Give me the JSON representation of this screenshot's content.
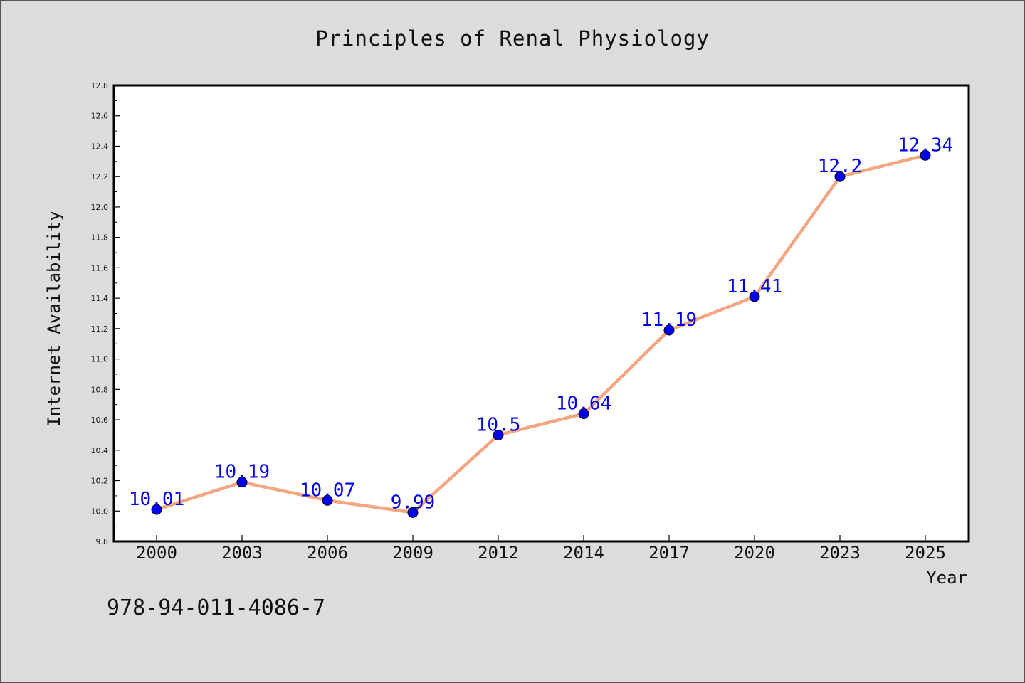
{
  "chart_data": {
    "type": "line",
    "title": "Principles of Renal Physiology",
    "xlabel": "Year",
    "ylabel": "Internet Availability",
    "categories": [
      "2000",
      "2003",
      "2006",
      "2009",
      "2012",
      "2014",
      "2017",
      "2020",
      "2023",
      "2025"
    ],
    "series": [
      {
        "values": [
          10.01,
          10.19,
          10.07,
          9.99,
          10.5,
          10.64,
          11.19,
          11.41,
          12.2,
          12.34
        ],
        "labels": [
          "10.01",
          "10.19",
          "10.07",
          "9.99",
          "10.5",
          "10.64",
          "11.19",
          "11.41",
          "12.2",
          "12.34"
        ],
        "line_color": "#f4a582",
        "marker_color": "#0000ee"
      }
    ],
    "ylim": [
      9.8,
      12.8
    ],
    "yticks": [
      "9.8",
      "10.0",
      "10.2",
      "10.4",
      "10.6",
      "10.8",
      "11.0",
      "11.2",
      "11.4",
      "11.6",
      "11.8",
      "12.0",
      "12.2",
      "12.4",
      "12.6",
      "12.8"
    ],
    "grid": false,
    "legend": "none"
  },
  "footer": {
    "isbn": "978-94-011-4086-7"
  }
}
